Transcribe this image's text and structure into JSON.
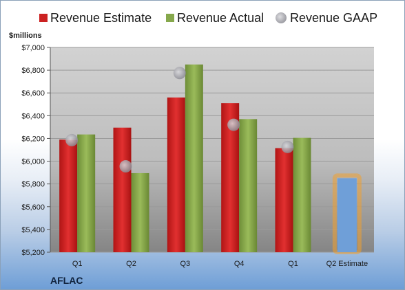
{
  "chart_data": {
    "type": "bar",
    "company": "AFLAC",
    "unit_label": "$millions",
    "categories": [
      "Q1",
      "Q2",
      "Q3",
      "Q4",
      "Q1",
      "Q2 Estimate"
    ],
    "series": [
      {
        "name": "Revenue Estimate",
        "color": "#cc2222",
        "values": [
          6190,
          6295,
          6560,
          6510,
          6115,
          null
        ]
      },
      {
        "name": "Revenue Actual",
        "color": "#86a84c",
        "values": [
          6235,
          5895,
          6850,
          6370,
          6205,
          null
        ]
      },
      {
        "name": "Revenue GAAP",
        "color": "#a6a6ae",
        "type": "scatter",
        "values": [
          6185,
          5955,
          6775,
          6320,
          6125,
          null
        ]
      }
    ],
    "q2_estimate": {
      "label": "Q2 Estimate",
      "value": 5850,
      "color": "#6f9fd8",
      "highlight": "#f0a030"
    },
    "ylim": [
      5200,
      7000
    ],
    "yticks": [
      5200,
      5400,
      5600,
      5800,
      6000,
      6200,
      6400,
      6600,
      6800,
      7000
    ],
    "ytick_labels": [
      "$5,200",
      "$5,400",
      "$5,600",
      "$5,800",
      "$6,000",
      "$6,200",
      "$6,400",
      "$6,600",
      "$6,800",
      "$7,000"
    ],
    "grid": true,
    "legend_position": "top"
  }
}
